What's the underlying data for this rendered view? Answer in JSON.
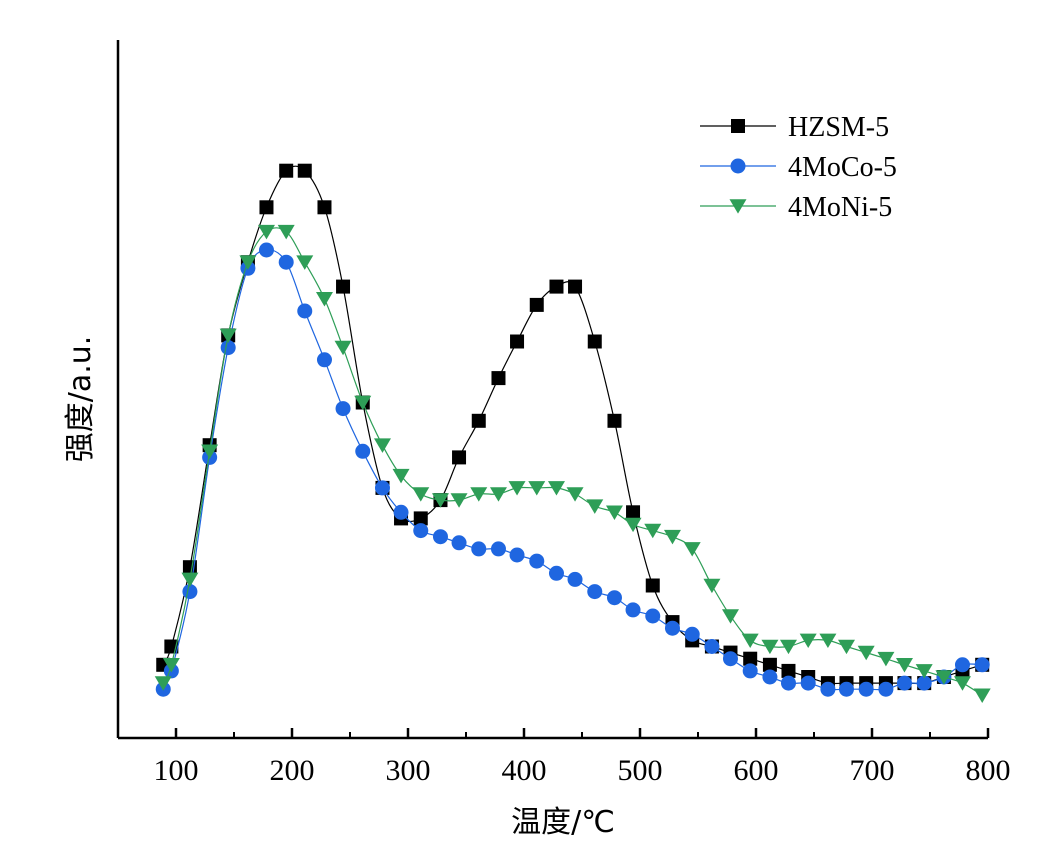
{
  "chart_data": {
    "type": "line",
    "title": "",
    "xlabel": "温度/℃",
    "ylabel": "强度/a.u.",
    "xlim": [
      50,
      800
    ],
    "ylim": [
      0,
      100
    ],
    "x_ticks": [
      "100",
      "200",
      "300",
      "400",
      "500",
      "600",
      "700",
      "800"
    ],
    "y_ticks_shown": false,
    "grid": false,
    "legend_position": "top-right",
    "series": [
      {
        "name": "HZSM-5",
        "marker": "square",
        "color": "#000000",
        "x": [
          89,
          96,
          112,
          129,
          145,
          162,
          178,
          195,
          211,
          228,
          244,
          261,
          278,
          294,
          311,
          328,
          344,
          361,
          378,
          394,
          411,
          428,
          444,
          461,
          478,
          494,
          511,
          528,
          545,
          562,
          578,
          595,
          612,
          628,
          645,
          662,
          678,
          695,
          712,
          728,
          745,
          762,
          778,
          795
        ],
        "y": [
          12,
          15,
          28,
          48,
          66,
          78,
          87,
          93,
          93,
          87,
          74,
          55,
          41,
          36,
          36,
          39,
          46,
          52,
          59,
          65,
          71,
          74,
          74,
          65,
          52,
          37,
          25,
          19,
          16,
          15,
          14,
          13,
          12,
          11,
          10,
          9,
          9,
          9,
          9,
          9,
          9,
          10,
          11,
          12
        ]
      },
      {
        "name": "4MoCo-5",
        "marker": "circle",
        "color": "#1f66e0",
        "x": [
          89,
          96,
          112,
          129,
          145,
          162,
          178,
          195,
          211,
          228,
          244,
          261,
          278,
          294,
          311,
          328,
          344,
          361,
          378,
          394,
          411,
          428,
          444,
          461,
          478,
          494,
          511,
          528,
          545,
          562,
          578,
          595,
          612,
          628,
          645,
          662,
          678,
          695,
          712,
          728,
          745,
          762,
          778,
          795
        ],
        "y": [
          8,
          11,
          24,
          46,
          64,
          77,
          80,
          78,
          70,
          62,
          54,
          47,
          41,
          37,
          34,
          33,
          32,
          31,
          31,
          30,
          29,
          27,
          26,
          24,
          23,
          21,
          20,
          18,
          17,
          15,
          13,
          11,
          10,
          9,
          9,
          8,
          8,
          8,
          8,
          9,
          9,
          10,
          12,
          12
        ]
      },
      {
        "name": "4MoNi-5",
        "marker": "triangle-down",
        "color": "#2e9e57",
        "x": [
          89,
          96,
          112,
          129,
          145,
          162,
          178,
          195,
          211,
          228,
          244,
          261,
          278,
          294,
          311,
          328,
          344,
          361,
          378,
          394,
          411,
          428,
          444,
          461,
          478,
          494,
          511,
          528,
          545,
          562,
          578,
          595,
          612,
          628,
          645,
          662,
          678,
          695,
          712,
          728,
          745,
          762,
          778,
          795
        ],
        "y": [
          9,
          12,
          26,
          47,
          66,
          78,
          83,
          83,
          78,
          72,
          64,
          55,
          48,
          43,
          40,
          39,
          39,
          40,
          40,
          41,
          41,
          41,
          40,
          38,
          37,
          35,
          34,
          33,
          31,
          25,
          20,
          16,
          15,
          15,
          16,
          16,
          15,
          14,
          13,
          12,
          11,
          10,
          9,
          7
        ]
      }
    ]
  }
}
